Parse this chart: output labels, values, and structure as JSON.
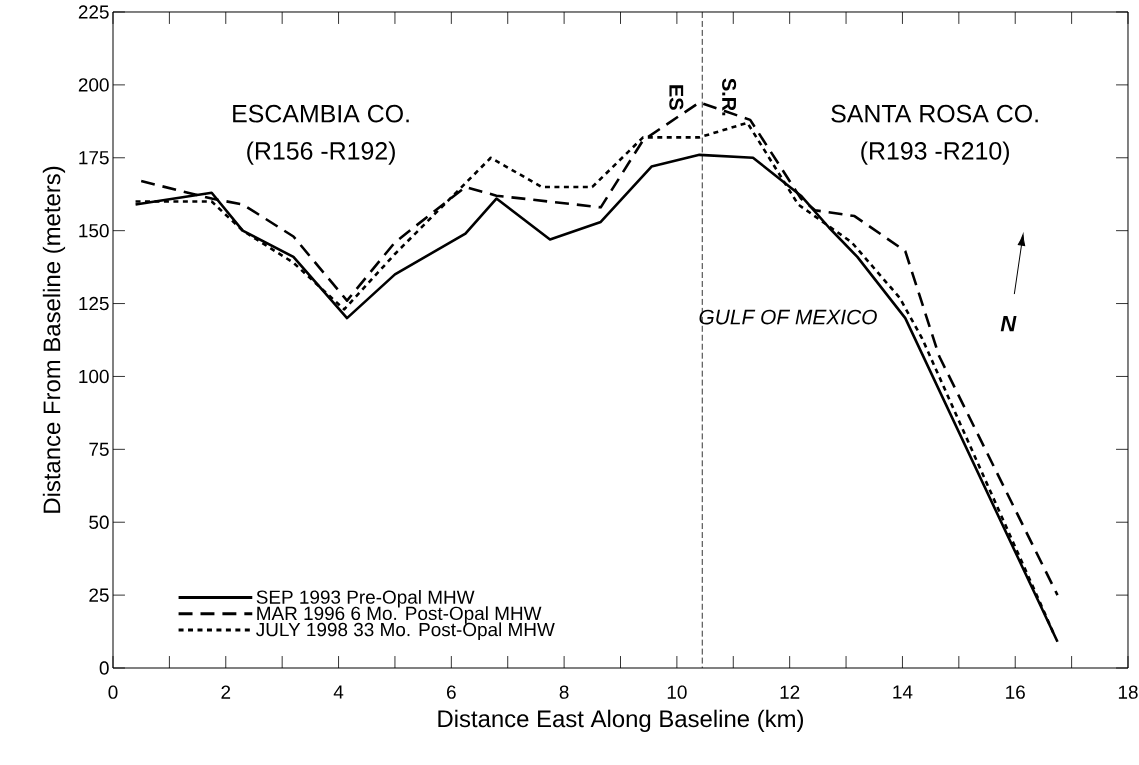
{
  "chart_data": {
    "type": "line",
    "xlabel": "Distance East Along Baseline (km)",
    "ylabel": "Distance From Baseline (meters)",
    "xlim": [
      0,
      18
    ],
    "xticks": [
      0,
      {
        "value": 1,
        "label": null
      },
      2,
      {
        "value": 3,
        "label": null
      },
      4,
      {
        "value": 5,
        "label": null
      },
      6,
      {
        "value": 7,
        "label": null
      },
      8,
      {
        "value": 9,
        "label": null
      },
      10,
      {
        "value": 11,
        "label": null
      },
      12,
      {
        "value": 13,
        "label": null
      },
      14,
      {
        "value": 15,
        "label": null
      },
      16,
      {
        "value": 17,
        "label": null
      },
      18
    ],
    "ylim": [
      0,
      225
    ],
    "yticks": [
      0,
      25,
      50,
      75,
      100,
      125,
      150,
      175,
      200,
      225
    ],
    "grid": false,
    "legend": "bottom left",
    "marker": "none",
    "series": [
      {
        "name": "SEP 1993 Pre-Opal MHW",
        "color": "#000000",
        "line_style": "solid",
        "x": [
          0.4,
          1.75,
          2.3,
          3.2,
          4.15,
          5.0,
          6.25,
          6.8,
          7.75,
          8.65,
          9.55,
          10.4,
          11.35,
          12.2,
          12.7,
          13.2,
          14.05,
          16.75
        ],
        "values": [
          159,
          163,
          150,
          141,
          120,
          135,
          149,
          161,
          147,
          153,
          172,
          176,
          175,
          162,
          151,
          141,
          120,
          9
        ]
      },
      {
        "name": "MAR 1996 6 Mo. Post-Opal MHW",
        "color": "#000000",
        "line_style": "dashed",
        "x": [
          0.5,
          1.75,
          2.3,
          3.2,
          4.15,
          5.0,
          6.25,
          6.8,
          8.65,
          9.4,
          10.4,
          11.3,
          12.2,
          12.45,
          13.15,
          14.05,
          14.65,
          16.75
        ],
        "values": [
          167,
          161,
          159,
          148,
          126,
          146,
          165,
          162,
          158,
          181,
          194,
          188,
          161,
          157,
          155,
          143,
          107,
          25
        ]
      },
      {
        "name": "JULY 1998 33 Mo. Post-Opal MHW",
        "color": "#000000",
        "line_style": "dotted",
        "x": [
          0.4,
          1.75,
          2.3,
          3.2,
          4.1,
          5.0,
          6.7,
          7.6,
          8.5,
          9.4,
          10.4,
          11.25,
          12.15,
          13.1,
          13.95,
          14.35,
          16.45,
          16.7
        ],
        "values": [
          160,
          160,
          150,
          139,
          123,
          142,
          175,
          165,
          165,
          182,
          182,
          187,
          159,
          146,
          127,
          113,
          22,
          11
        ]
      }
    ],
    "ref_lines": [
      {
        "axis": "x",
        "value": 10.45,
        "line_style": "dashed",
        "color": "#000000"
      }
    ],
    "annotations": [
      "ESCAMBIA CO.",
      "(R156 -R192)",
      "SANTA ROSA CO.",
      "(R193 -R210)",
      "GULF OF MEXICO",
      "ES",
      "S.R.",
      "N"
    ]
  }
}
